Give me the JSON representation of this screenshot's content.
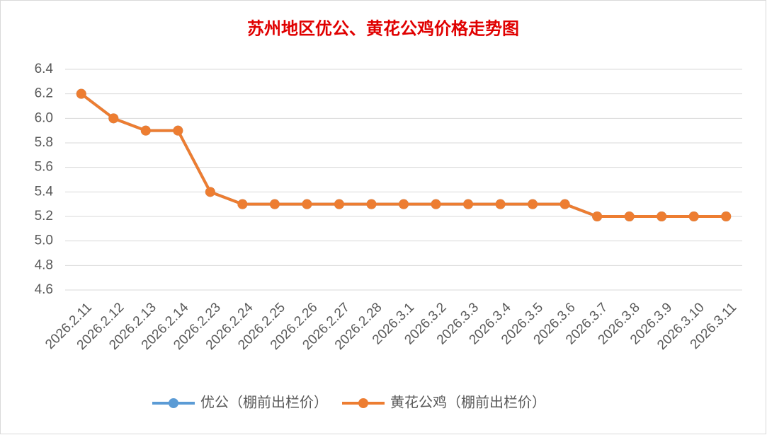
{
  "chart_data": {
    "type": "line",
    "title": "苏州地区优公、黄花公鸡价格走势图",
    "categories": [
      "2026.2.11",
      "2026.2.12",
      "2026.2.13",
      "2026.2.14",
      "2026.2.23",
      "2026.2.24",
      "2026.2.25",
      "2026.2.26",
      "2026.2.27",
      "2026.2.28",
      "2026.3.1",
      "2026.3.2",
      "2026.3.3",
      "2026.3.4",
      "2026.3.5",
      "2026.3.6",
      "2026.3.7",
      "2026.3.8",
      "2026.3.9",
      "2026.3.10",
      "2026.3.11"
    ],
    "series": [
      {
        "name": "优公（棚前出栏价）",
        "color": "#5b9bd5",
        "values": [
          6.2,
          6.0,
          5.9,
          5.9,
          5.4,
          5.3,
          5.3,
          5.3,
          5.3,
          5.3,
          5.3,
          5.3,
          5.3,
          5.3,
          5.3,
          5.3,
          5.2,
          5.2,
          5.2,
          5.2,
          5.2
        ]
      },
      {
        "name": "黄花公鸡（棚前出栏价）",
        "color": "#ed7d31",
        "values": [
          6.2,
          6.0,
          5.9,
          5.9,
          5.4,
          5.3,
          5.3,
          5.3,
          5.3,
          5.3,
          5.3,
          5.3,
          5.3,
          5.3,
          5.3,
          5.3,
          5.2,
          5.2,
          5.2,
          5.2,
          5.2
        ]
      }
    ],
    "ylim": [
      4.6,
      6.4
    ],
    "yticks": [
      4.6,
      4.8,
      {
        "value": 5,
        "label": "5.0"
      },
      5.2,
      5.4,
      5.6,
      5.8,
      {
        "value": 6,
        "label": "6.0"
      },
      6.2,
      6.4
    ],
    "grid": true,
    "legend": "bottom"
  }
}
